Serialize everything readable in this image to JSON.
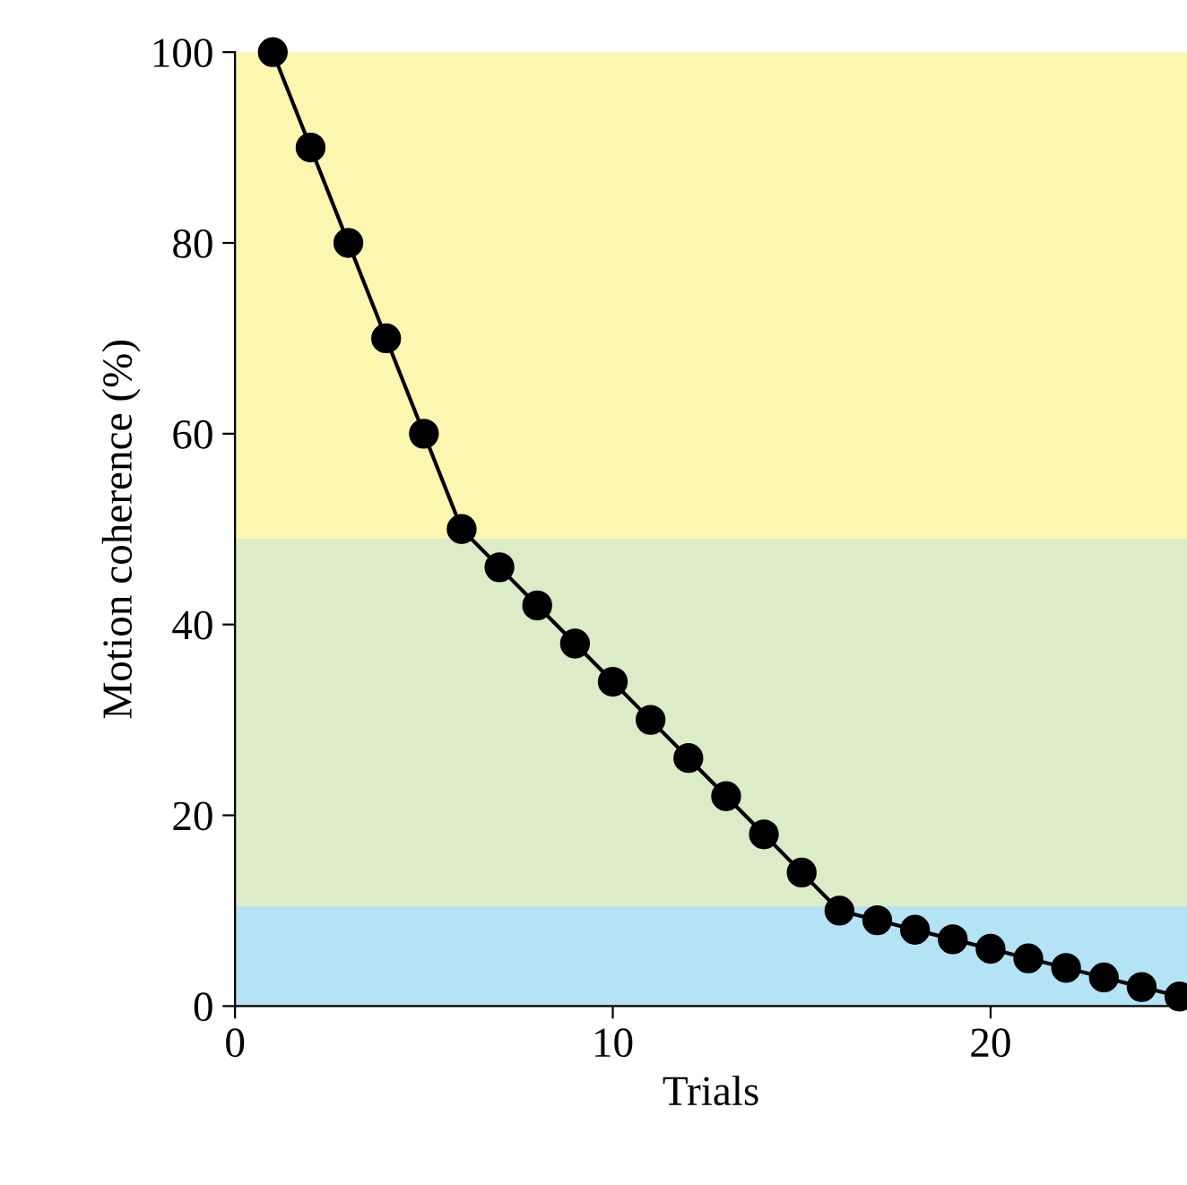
{
  "chart_data": {
    "type": "line",
    "xlabel": "Trials",
    "ylabel": "Motion coherence (%)",
    "x": [
      1,
      2,
      3,
      4,
      5,
      6,
      7,
      8,
      9,
      10,
      11,
      12,
      13,
      14,
      15,
      16,
      17,
      18,
      19,
      20,
      21,
      22,
      23,
      24,
      25
    ],
    "series": [
      {
        "color": "#000000",
        "values": [
          100,
          90,
          80,
          70,
          60,
          50,
          46,
          42,
          38,
          34,
          30,
          26,
          22,
          18,
          14,
          10,
          9,
          8,
          7,
          6,
          5,
          4,
          3,
          2,
          1
        ]
      }
    ],
    "marker": "circle",
    "line_style": "solid",
    "xlim": [
      0,
      25.2
    ],
    "xticks": [
      0,
      10,
      20
    ],
    "ylim": [
      0,
      100
    ],
    "yticks": [
      0,
      20,
      40,
      60,
      80,
      100
    ],
    "bands": [
      {
        "axis": "y",
        "from": 0,
        "to": 10.5,
        "color": "#b3e3f4"
      },
      {
        "axis": "y",
        "from": 10.5,
        "to": 49,
        "color": "#dcebc8"
      },
      {
        "axis": "y",
        "from": 49,
        "to": 100,
        "color": "#fbf7b0"
      }
    ],
    "grid": false,
    "legend": false
  }
}
